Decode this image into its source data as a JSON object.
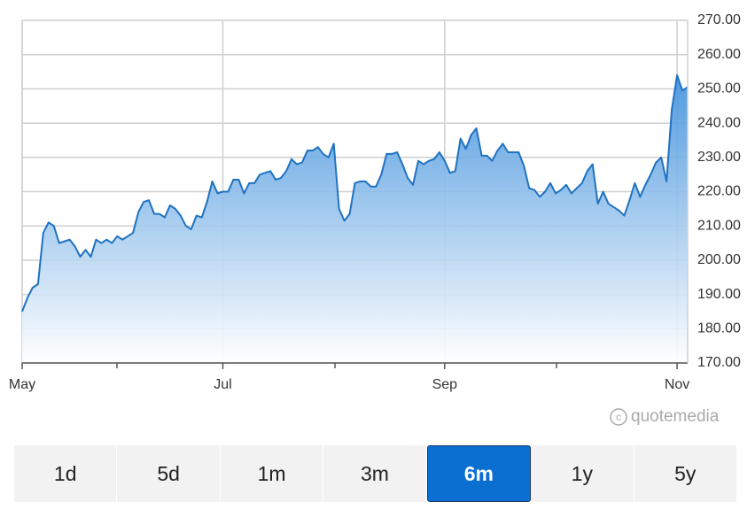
{
  "chart_data": {
    "type": "area",
    "categories": [
      "May",
      null,
      null,
      null,
      null,
      null,
      null,
      null,
      null,
      null,
      null,
      null,
      null,
      null,
      null,
      null,
      null,
      null,
      null,
      null,
      null,
      null,
      null,
      null,
      null,
      null,
      null,
      null,
      null,
      null,
      null,
      null,
      null,
      null,
      null,
      null,
      null,
      null,
      "Jul",
      null,
      null,
      null,
      null,
      null,
      null,
      null,
      null,
      null,
      null,
      null,
      null,
      null,
      null,
      null,
      null,
      null,
      null,
      null,
      null,
      null,
      null,
      null,
      null,
      null,
      null,
      null,
      null,
      null,
      null,
      null,
      null,
      null,
      null,
      null,
      null,
      null,
      null,
      null,
      null,
      null,
      "Sep",
      null,
      null,
      null,
      null,
      null,
      null,
      null,
      null,
      null,
      null,
      null,
      null,
      null,
      null,
      null,
      null,
      null,
      null,
      null,
      null,
      null,
      null,
      null,
      null,
      null,
      null,
      null,
      null,
      null,
      null,
      null,
      null,
      null,
      null,
      null,
      null,
      null,
      null,
      null,
      null,
      null,
      null,
      null,
      "Nov",
      null,
      null
    ],
    "values": [
      185,
      189,
      192,
      193,
      208,
      211,
      210,
      205,
      205.5,
      206,
      204,
      201,
      203,
      201,
      206,
      205,
      206,
      205,
      207,
      206,
      207,
      208,
      214,
      217,
      217.5,
      213.5,
      213.5,
      212.5,
      216,
      215,
      213,
      210,
      209,
      213,
      212.5,
      217,
      223,
      219.5,
      220,
      220,
      223.5,
      223.5,
      219.5,
      222.5,
      222.5,
      225,
      225.5,
      226,
      223.5,
      224,
      226,
      229.5,
      228,
      228.5,
      232,
      232,
      233,
      231,
      230,
      234,
      215,
      211.5,
      213.5,
      222.5,
      223,
      223,
      221.5,
      221.5,
      225,
      231,
      231,
      231.5,
      228,
      224,
      222,
      229,
      228,
      229,
      229.5,
      231.5,
      229,
      225.5,
      226,
      235.5,
      232.5,
      236.5,
      238.5,
      230.5,
      230.5,
      229,
      232,
      234,
      231.5,
      231.5,
      231.5,
      227.5,
      221,
      220.5,
      218.5,
      220,
      222.5,
      219.5,
      220.5,
      222,
      219.5,
      221,
      222.5,
      226,
      228,
      216.5,
      220,
      216.5,
      215.5,
      214.5,
      213,
      217.5,
      222.5,
      218.5,
      222,
      225,
      228.5,
      230,
      223,
      244,
      254,
      249.5,
      250.5
    ],
    "color": "#1f72c0",
    "ylim": [
      170,
      270
    ],
    "yticks": [
      {
        "value": 170,
        "label": "170.00"
      },
      {
        "value": 180,
        "label": "180.00"
      },
      {
        "value": 190,
        "label": "190.00"
      },
      {
        "value": 200,
        "label": "200.00"
      },
      {
        "value": 210,
        "label": "210.00"
      },
      {
        "value": 220,
        "label": "220.00"
      },
      {
        "value": 230,
        "label": "230.00"
      },
      {
        "value": 240,
        "label": "240.00"
      },
      {
        "value": 250,
        "label": "250.00"
      },
      {
        "value": 260,
        "label": "260.00"
      },
      {
        "value": 270,
        "label": "270.00"
      }
    ],
    "grid": true,
    "watermark": "quotemedia"
  },
  "range_buttons": {
    "options": [
      "1d",
      "5d",
      "1m",
      "3m",
      "6m",
      "1y",
      "5y"
    ],
    "active": 4
  }
}
